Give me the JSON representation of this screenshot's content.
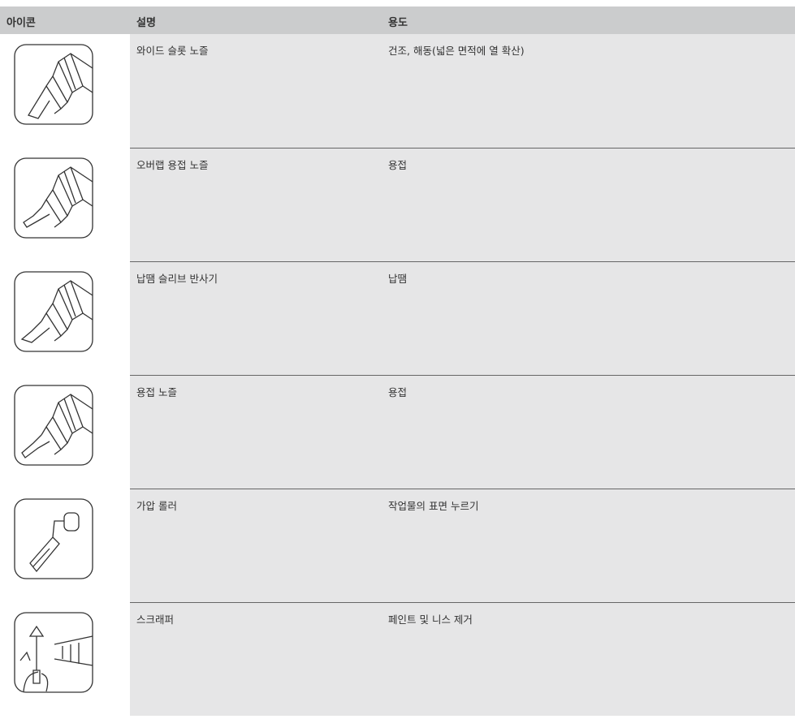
{
  "table": {
    "header": [
      "아이콘",
      "설명",
      "용도"
    ],
    "rows": [
      [
        "와이드 슬롯 노즐",
        "건조, 해동(넓은 면적에 열 확산)"
      ],
      [
        "오버랩 용접 노즐",
        "용접"
      ],
      [
        "납땜 슬리브 반사기",
        "납땜"
      ],
      [
        "용접 노즐",
        "용접"
      ],
      [
        "가압 롤러",
        "작업물의 표면 누르기"
      ],
      [
        "스크래퍼",
        "페인트 및 니스 제거"
      ]
    ]
  }
}
